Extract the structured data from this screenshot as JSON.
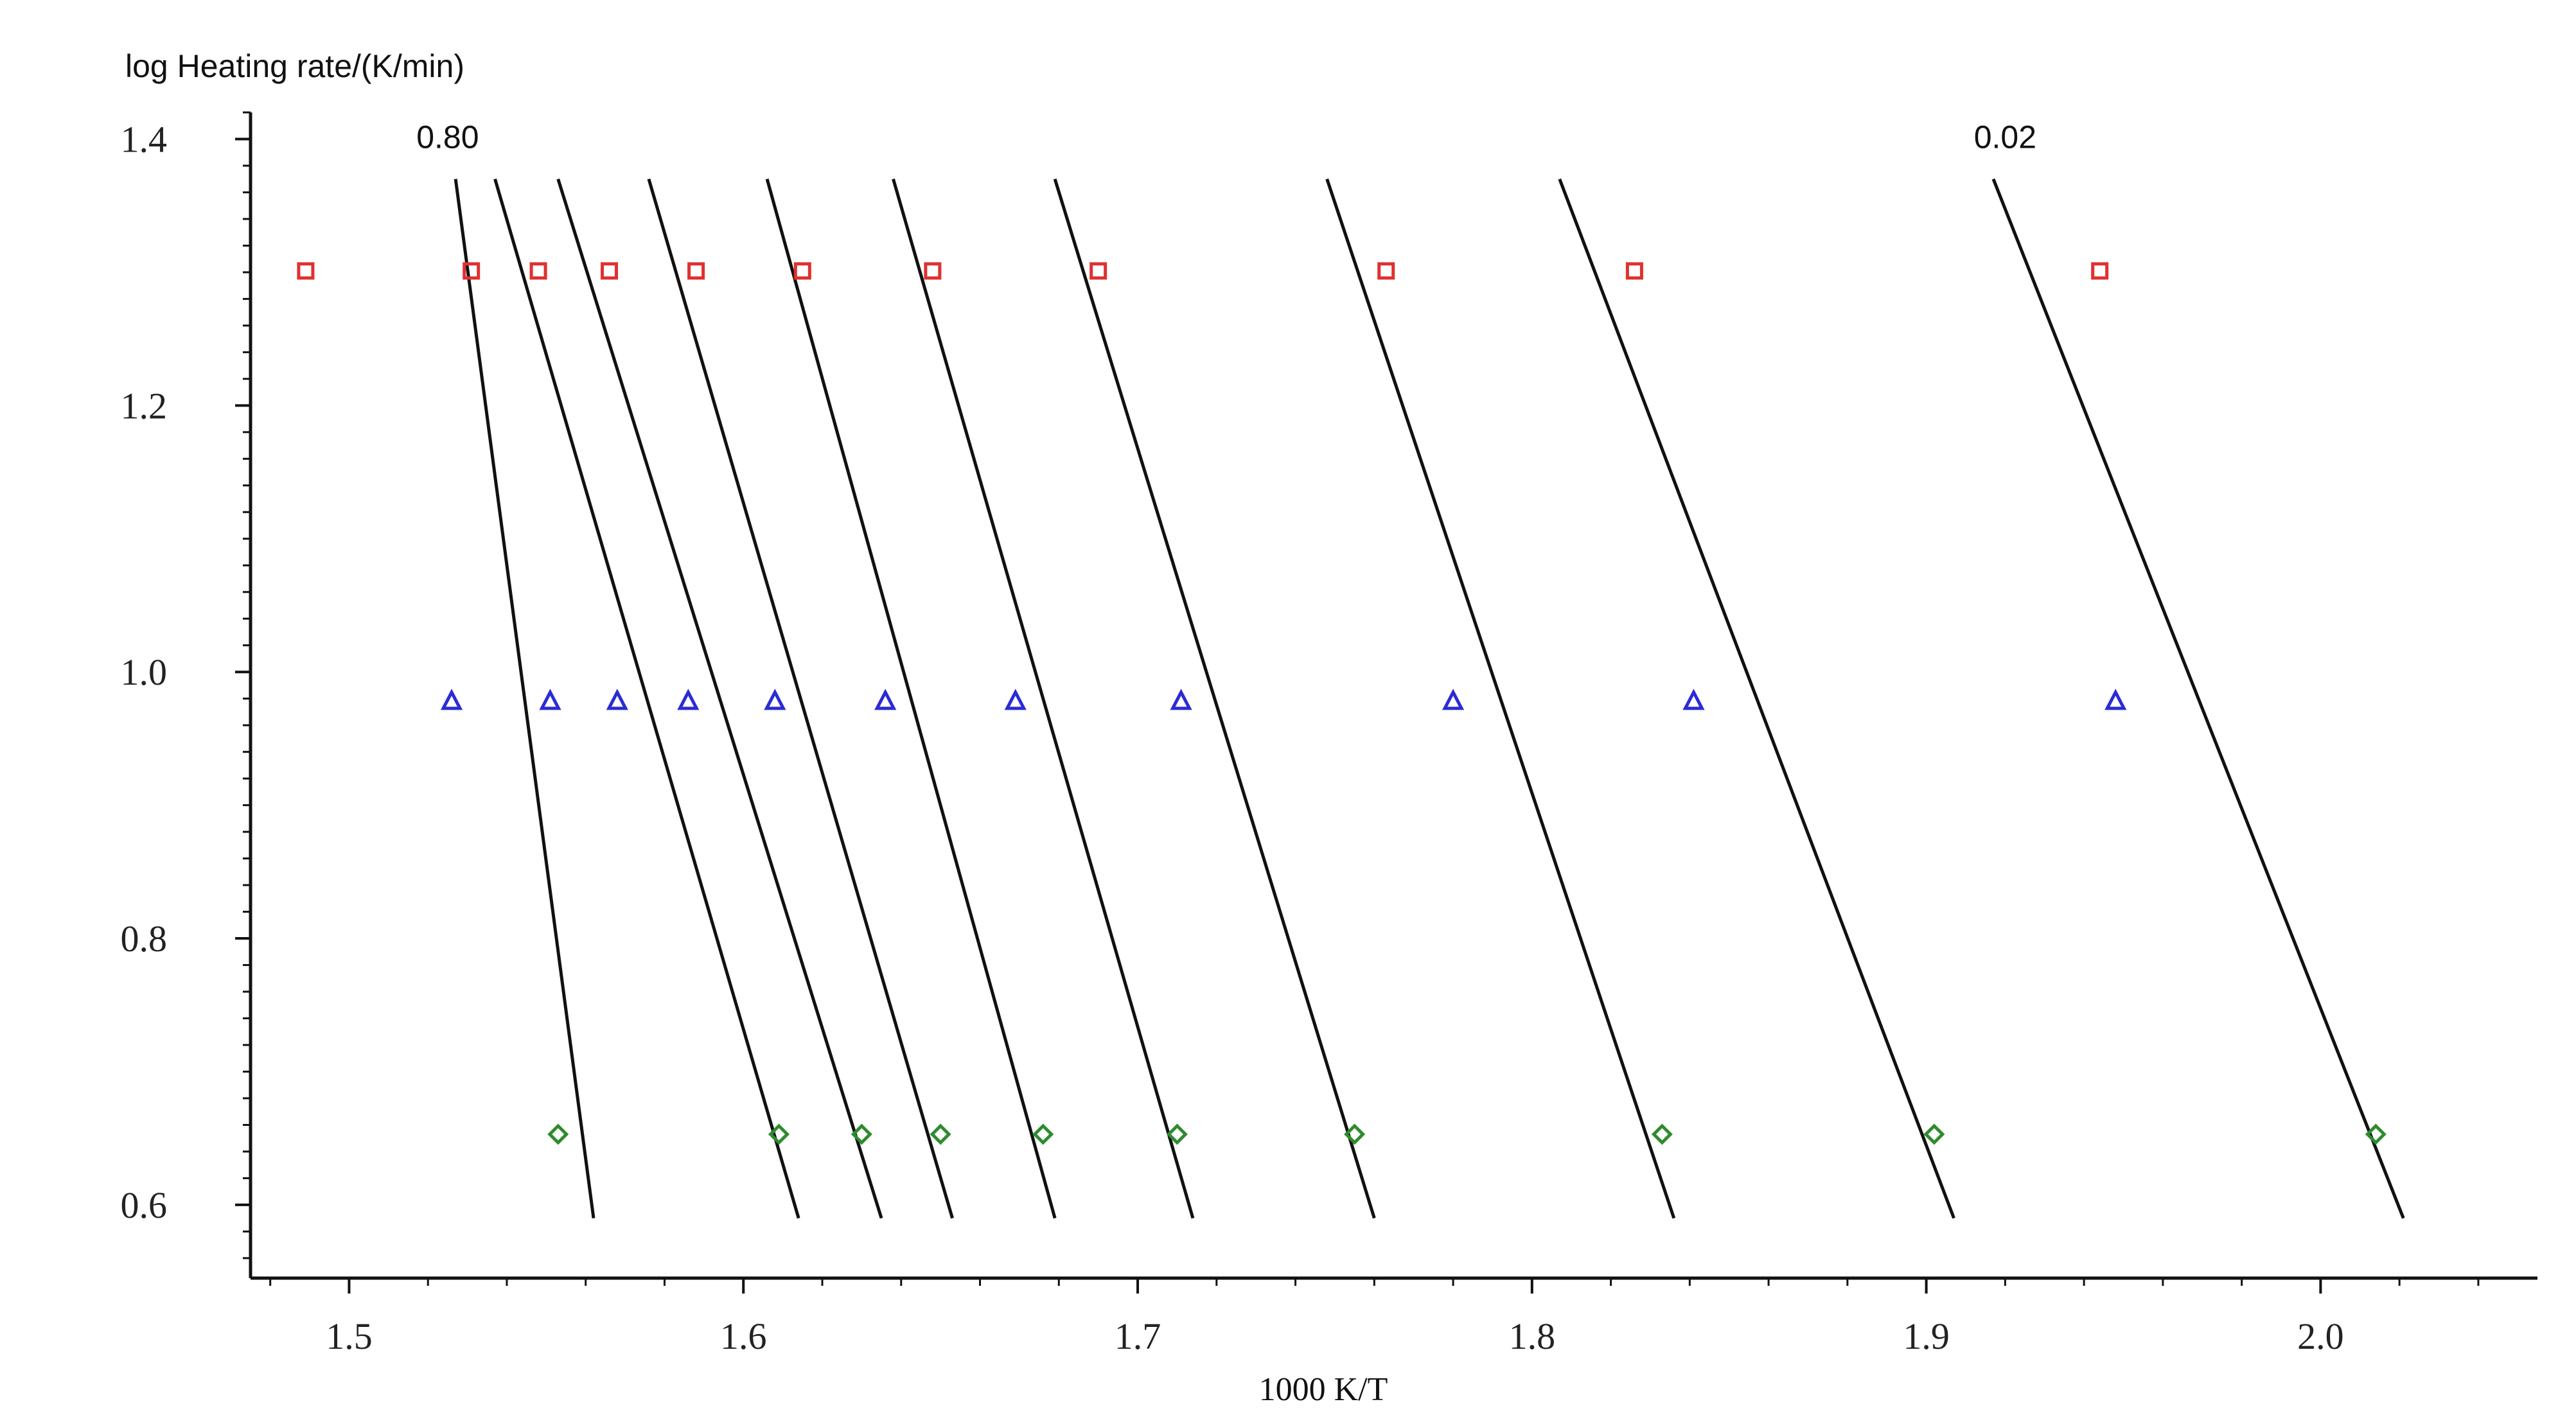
{
  "chart_data": {
    "type": "scatter",
    "title": "",
    "xlabel": "1000 K/T",
    "ylabel": "log Heating rate/(K/min)",
    "xlim": [
      1.475,
      2.055
    ],
    "ylim": [
      0.545,
      1.42
    ],
    "x_ticks": [
      1.5,
      1.6,
      1.7,
      1.8,
      1.9,
      2.0
    ],
    "x_tick_labels": [
      "1.5",
      "1.6",
      "1.7",
      "1.8",
      "1.9",
      "2.0"
    ],
    "y_ticks": [
      0.6,
      0.8,
      1.0,
      1.2,
      1.4
    ],
    "y_tick_labels": [
      "0.6",
      "0.8",
      "1.0",
      "1.2",
      "1.4"
    ],
    "grid": false,
    "annotations": [
      {
        "text": "0.80",
        "x": 1.525,
        "y": 1.4
      },
      {
        "text": "0.02",
        "x": 1.92,
        "y": 1.4
      }
    ],
    "series": [
      {
        "marker": "square",
        "color": "#e03030",
        "x": [
          1.489,
          1.531,
          1.548,
          1.566,
          1.588,
          1.615,
          1.648,
          1.69,
          1.763,
          1.826,
          1.944
        ],
        "y": [
          1.301,
          1.301,
          1.301,
          1.301,
          1.301,
          1.301,
          1.301,
          1.301,
          1.301,
          1.301,
          1.301
        ]
      },
      {
        "marker": "triangle",
        "color": "#2b2bd6",
        "x": [
          1.526,
          1.551,
          1.568,
          1.586,
          1.608,
          1.636,
          1.669,
          1.711,
          1.78,
          1.841,
          1.948
        ],
        "y": [
          0.978,
          0.978,
          0.978,
          0.978,
          0.978,
          0.978,
          0.978,
          0.978,
          0.978,
          0.978,
          0.978
        ]
      },
      {
        "marker": "diamond",
        "color": "#2e8b2e",
        "x": [
          1.553,
          1.609,
          1.63,
          1.65,
          1.676,
          1.71,
          1.755,
          1.833,
          1.902,
          2.014
        ],
        "y": [
          0.653,
          0.653,
          0.653,
          0.653,
          0.653,
          0.653,
          0.653,
          0.653,
          0.653,
          0.653
        ]
      }
    ],
    "lines": [
      {
        "x": [
          1.527,
          1.562
        ],
        "y": [
          1.37,
          0.59
        ]
      },
      {
        "x": [
          1.537,
          1.614
        ],
        "y": [
          1.37,
          0.59
        ]
      },
      {
        "x": [
          1.553,
          1.635
        ],
        "y": [
          1.37,
          0.59
        ]
      },
      {
        "x": [
          1.576,
          1.653
        ],
        "y": [
          1.37,
          0.59
        ]
      },
      {
        "x": [
          1.606,
          1.679
        ],
        "y": [
          1.37,
          0.59
        ]
      },
      {
        "x": [
          1.638,
          1.714
        ],
        "y": [
          1.37,
          0.59
        ]
      },
      {
        "x": [
          1.679,
          1.76
        ],
        "y": [
          1.37,
          0.59
        ]
      },
      {
        "x": [
          1.748,
          1.836
        ],
        "y": [
          1.37,
          0.59
        ]
      },
      {
        "x": [
          1.807,
          1.907
        ],
        "y": [
          1.37,
          0.59
        ]
      },
      {
        "x": [
          1.917,
          2.021
        ],
        "y": [
          1.37,
          0.59
        ]
      }
    ]
  }
}
